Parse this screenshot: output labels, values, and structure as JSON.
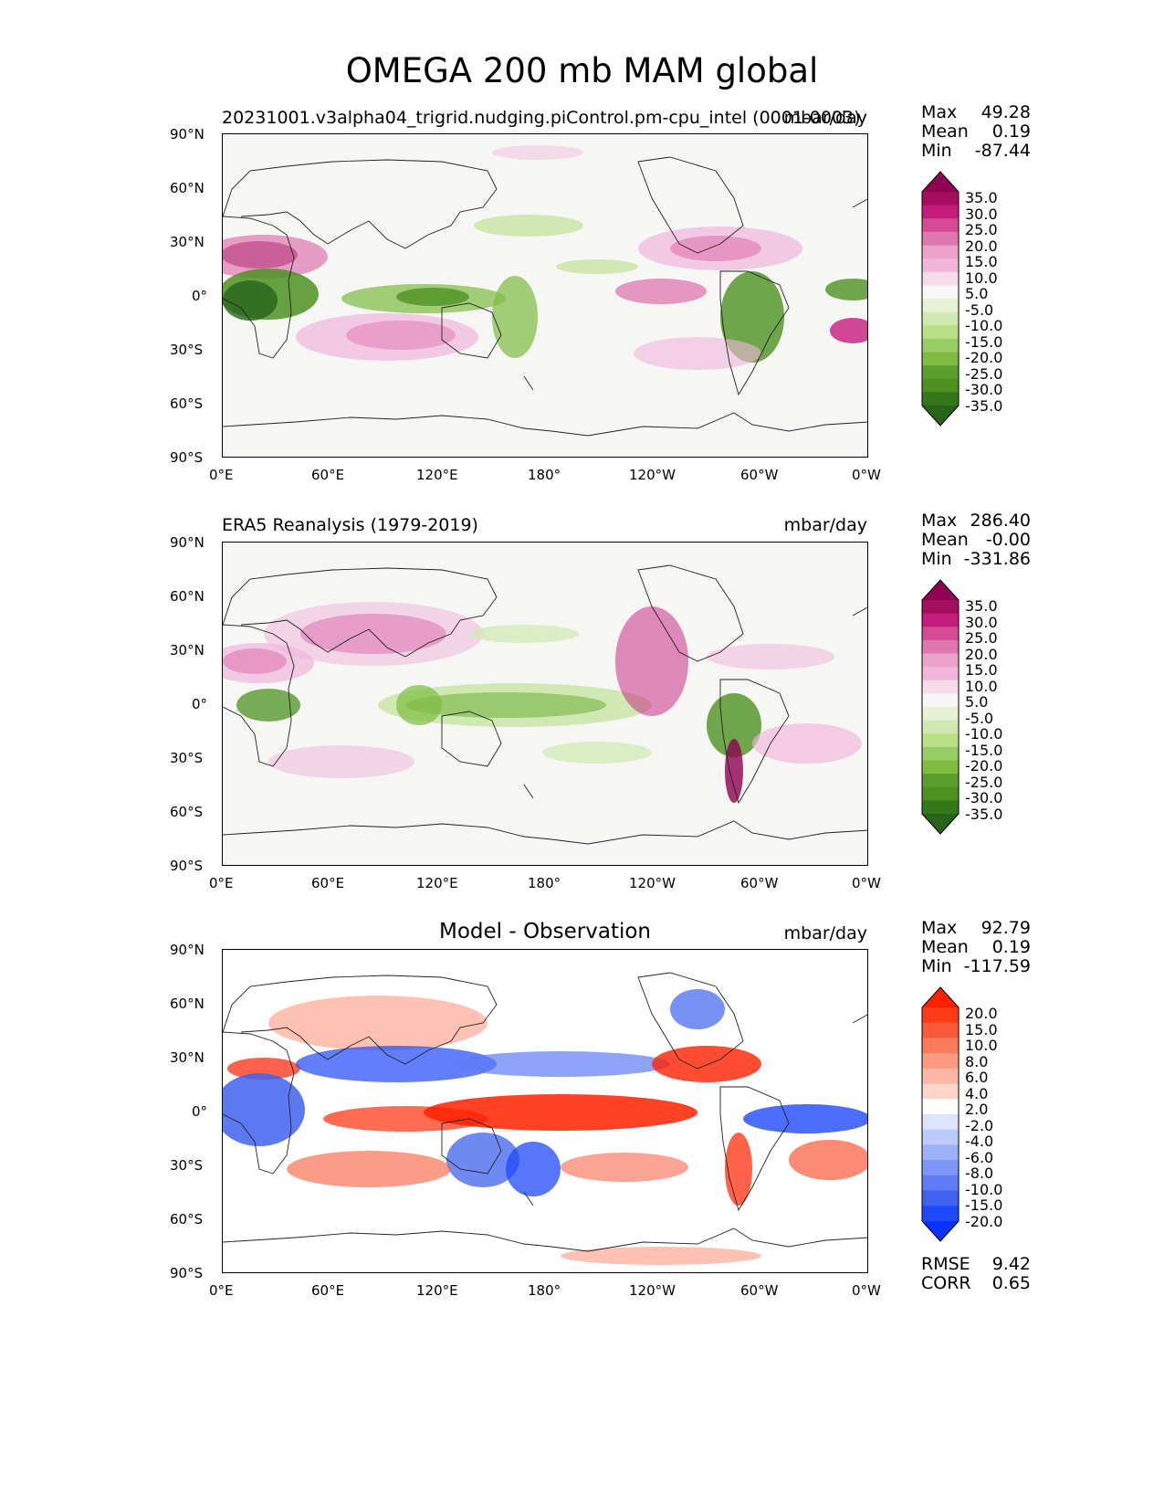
{
  "figure_title": "OMEGA 200 mb MAM global",
  "panels": [
    {
      "title": "20231001.v3alpha04_trigrid.nudging.piControl.pm-cpu_intel (0001-0003)",
      "units": "mbar/day",
      "stats": [
        {
          "label": "Max",
          "value": "49.28"
        },
        {
          "label": "Mean",
          "value": "0.19"
        },
        {
          "label": "Min",
          "value": "-87.44"
        }
      ]
    },
    {
      "title": "ERA5 Reanalysis (1979-2019)",
      "units": "mbar/day",
      "stats": [
        {
          "label": "Max",
          "value": "286.40"
        },
        {
          "label": "Mean",
          "value": "-0.00"
        },
        {
          "label": "Min",
          "value": "-331.86"
        }
      ]
    },
    {
      "title": "Model - Observation",
      "units": "mbar/day",
      "stats": [
        {
          "label": "Max",
          "value": "92.79"
        },
        {
          "label": "Mean",
          "value": "0.19"
        },
        {
          "label": "Min",
          "value": "-117.59"
        }
      ],
      "metrics": [
        {
          "label": "RMSE",
          "value": "9.42"
        },
        {
          "label": "CORR",
          "value": "0.65"
        }
      ]
    }
  ],
  "lat_ticks": [
    "90°N",
    "60°N",
    "30°N",
    "0°",
    "30°S",
    "60°S",
    "90°S"
  ],
  "lon_ticks": [
    "0°E",
    "60°E",
    "120°E",
    "180°",
    "120°W",
    "60°W",
    "0°W"
  ],
  "colorbar_field": {
    "labels": [
      "35.0",
      "30.0",
      "25.0",
      "20.0",
      "15.0",
      "10.0",
      "5.0",
      "-5.0",
      "-10.0",
      "-15.0",
      "-20.0",
      "-25.0",
      "-30.0",
      "-35.0"
    ],
    "colors": [
      "#8e0152",
      "#a30f5e",
      "#c51b7d",
      "#d64b95",
      "#de77ae",
      "#eba3c9",
      "#f1b6da",
      "#f8dbea",
      "#f7f7f7",
      "#e6f2d3",
      "#d0e9b0",
      "#b8e186",
      "#98cc65",
      "#7fbc41",
      "#5c9e2e",
      "#4d9221",
      "#34761a",
      "#276419"
    ]
  },
  "colorbar_diff": {
    "labels": [
      "20.0",
      "15.0",
      "10.0",
      "8.0",
      "6.0",
      "4.0",
      "2.0",
      "-2.0",
      "-4.0",
      "-6.0",
      "-8.0",
      "-10.0",
      "-15.0",
      "-20.0"
    ],
    "colors": [
      "#ff2000",
      "#ff3b1a",
      "#f95a3a",
      "#fa7a5c",
      "#fb9a80",
      "#fcb8a4",
      "#fdd6c9",
      "#ffffff",
      "#dce4ff",
      "#bccaff",
      "#9db0fb",
      "#7d96f7",
      "#5e7cf3",
      "#3f62ef",
      "#1f48f9",
      "#0a31ff"
    ]
  }
}
